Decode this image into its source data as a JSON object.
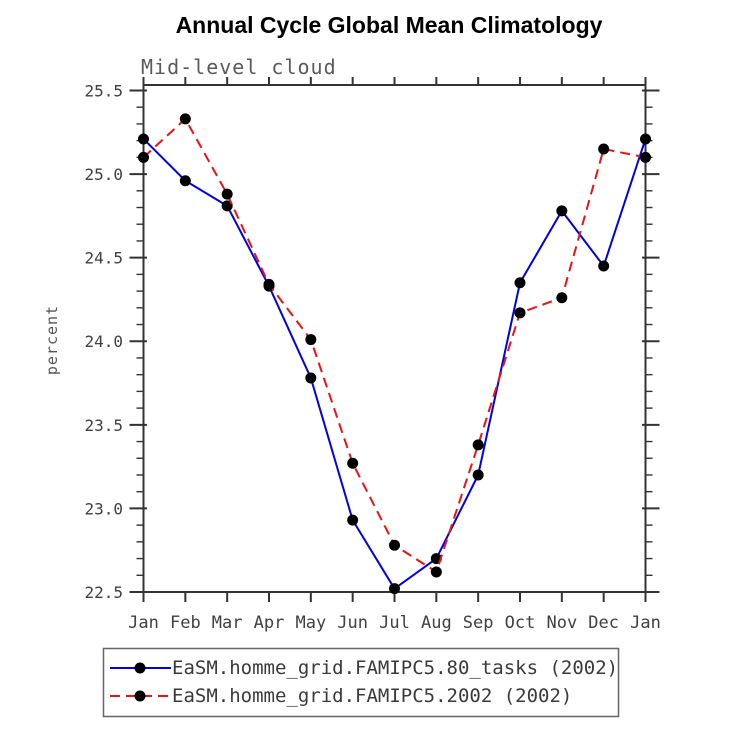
{
  "chart_data": {
    "type": "line",
    "title": "Annual Cycle Global Mean Climatology",
    "subtitle": "Mid-level cloud",
    "ylabel": "percent",
    "xlabel": "",
    "categories": [
      "Jan",
      "Feb",
      "Mar",
      "Apr",
      "May",
      "Jun",
      "Jul",
      "Aug",
      "Sep",
      "Oct",
      "Nov",
      "Dec",
      "Jan"
    ],
    "ylim": [
      22.5,
      25.53
    ],
    "ytick_labels": [
      "22.5",
      "23.0",
      "23.5",
      "24.0",
      "24.5",
      "25.0",
      "25.5"
    ],
    "ytick_major_step": 0.5,
    "ytick_minor_step": 0.1,
    "grid": false,
    "legend_position": "bottom-left",
    "series": [
      {
        "name": "EaSM.homme_grid.FAMIPC5.80_tasks (2002)",
        "color": "#0000ee",
        "line_style": "solid",
        "marker": "filled-circle",
        "marker_color": "#000000",
        "values": [
          25.21,
          24.96,
          24.81,
          24.33,
          23.78,
          22.93,
          22.52,
          22.7,
          23.2,
          24.35,
          24.78,
          24.45,
          25.21
        ]
      },
      {
        "name": "EaSM.homme_grid.FAMIPC5.2002 (2002)",
        "color": "#f01010",
        "line_style": "dashed",
        "marker": "filled-circle",
        "marker_color": "#000000",
        "values": [
          25.1,
          25.33,
          24.88,
          24.34,
          24.01,
          23.27,
          22.78,
          22.62,
          23.38,
          24.17,
          24.26,
          25.15,
          25.1
        ]
      }
    ]
  },
  "colors": {
    "background": "#ffffff",
    "axis": "#333333",
    "tick_label": "#404040",
    "subtitle": "#5a5a5a",
    "title": "#000000",
    "legend_border": "#666666"
  }
}
